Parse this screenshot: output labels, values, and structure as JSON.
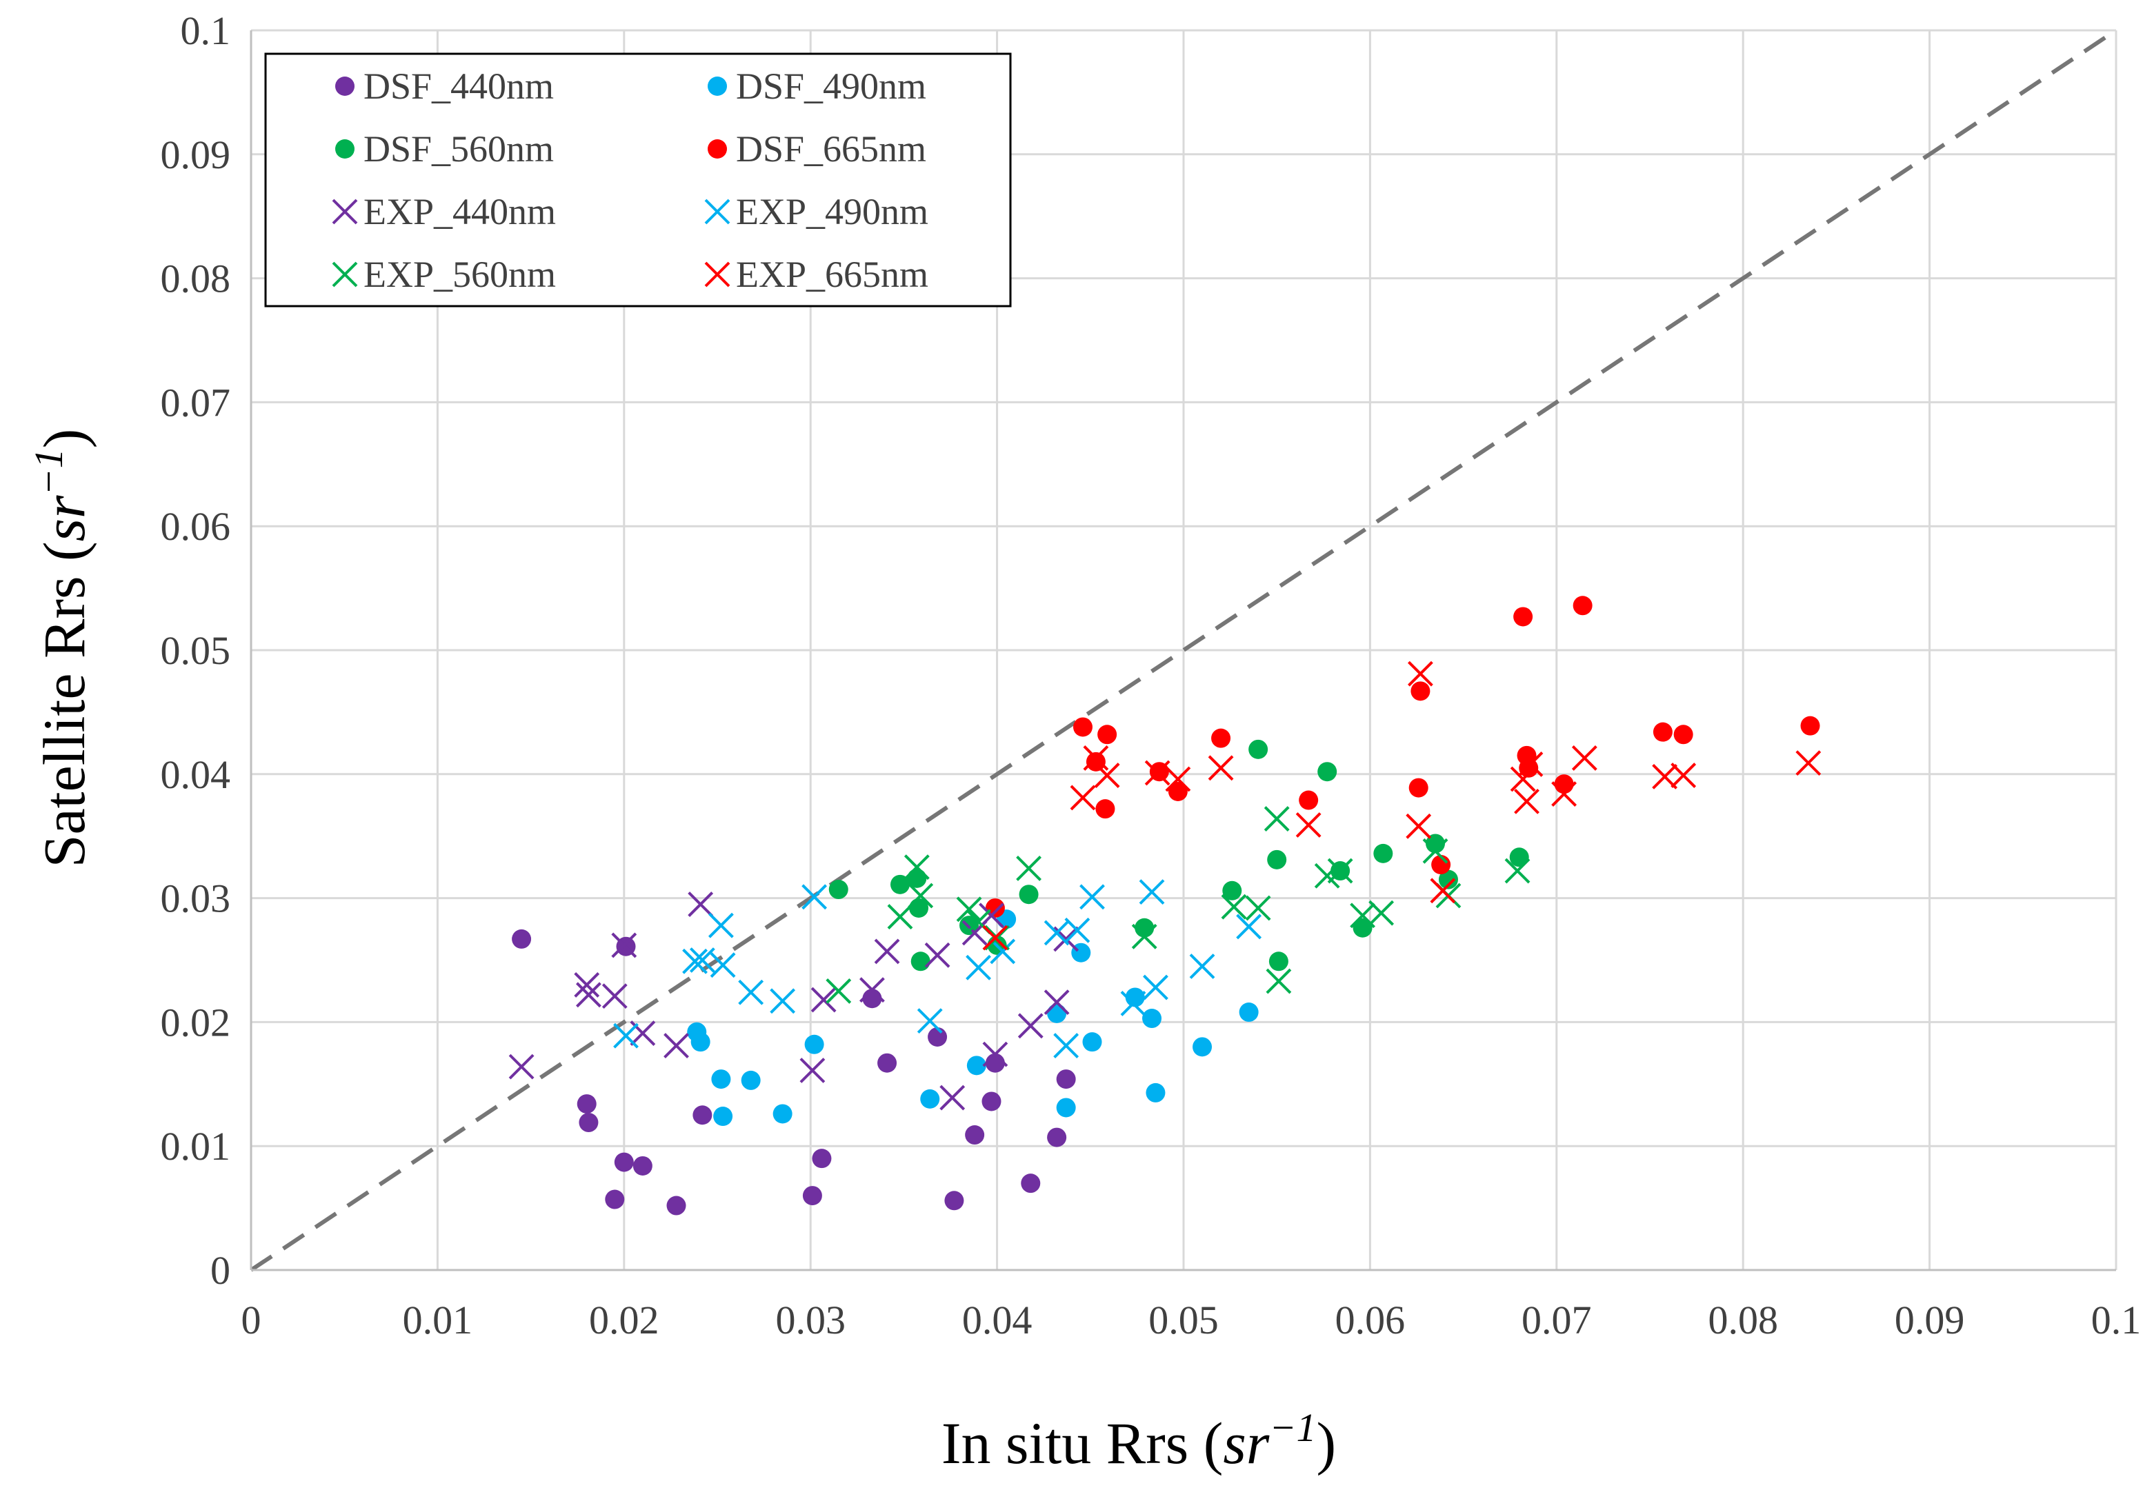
{
  "chart_data": {
    "type": "scatter",
    "title": "",
    "xlabel": "In situ Rrs",
    "xlabel_unit_base": "sr",
    "xlabel_unit_exp": "−1",
    "ylabel": "Satellite Rrs",
    "ylabel_unit_base": "sr",
    "ylabel_unit_exp": "−1",
    "xlim": [
      0,
      0.1
    ],
    "ylim": [
      0,
      0.1
    ],
    "x_ticks": [
      0,
      0.01,
      0.02,
      0.03,
      0.04,
      0.05,
      0.06,
      0.07,
      0.08,
      0.09,
      0.1
    ],
    "x_tick_labels": [
      "0",
      "0.01",
      "0.02",
      "0.03",
      "0.04",
      "0.05",
      "0.06",
      "0.07",
      "0.08",
      "0.09",
      "0.1"
    ],
    "y_ticks": [
      0,
      0.01,
      0.02,
      0.03,
      0.04,
      0.05,
      0.06,
      0.07,
      0.08,
      0.09,
      0.1
    ],
    "y_tick_labels": [
      "0",
      "0.01",
      "0.02",
      "0.03",
      "0.04",
      "0.05",
      "0.06",
      "0.07",
      "0.08",
      "0.09",
      "0.1"
    ],
    "grid": true,
    "reference_line": {
      "name": "1:1 line",
      "from": [
        0,
        0
      ],
      "to": [
        0.1,
        0.1
      ],
      "color": "#767676",
      "style": "dashed"
    },
    "legend_position": "top-left",
    "series": [
      {
        "name": "DSF_440nm",
        "marker": "circle",
        "color": "#7030A0",
        "points": [
          [
            0.0145,
            0.0267
          ],
          [
            0.018,
            0.0134
          ],
          [
            0.0181,
            0.0119
          ],
          [
            0.0195,
            0.0057
          ],
          [
            0.02,
            0.0087
          ],
          [
            0.0201,
            0.0261
          ],
          [
            0.021,
            0.0084
          ],
          [
            0.0228,
            0.0052
          ],
          [
            0.0242,
            0.0125
          ],
          [
            0.0301,
            0.006
          ],
          [
            0.0306,
            0.009
          ],
          [
            0.0333,
            0.0219
          ],
          [
            0.0341,
            0.0167
          ],
          [
            0.0368,
            0.0188
          ],
          [
            0.0377,
            0.0056
          ],
          [
            0.0388,
            0.0109
          ],
          [
            0.0397,
            0.0136
          ],
          [
            0.0399,
            0.0167
          ],
          [
            0.0418,
            0.007
          ],
          [
            0.0432,
            0.0107
          ],
          [
            0.0437,
            0.0154
          ]
        ]
      },
      {
        "name": "DSF_490nm",
        "marker": "circle",
        "color": "#00B0F0",
        "points": [
          [
            0.0239,
            0.0192
          ],
          [
            0.0241,
            0.0184
          ],
          [
            0.0252,
            0.0154
          ],
          [
            0.0253,
            0.0124
          ],
          [
            0.0268,
            0.0153
          ],
          [
            0.0285,
            0.0126
          ],
          [
            0.0302,
            0.0182
          ],
          [
            0.0364,
            0.0138
          ],
          [
            0.0389,
            0.0165
          ],
          [
            0.0405,
            0.0283
          ],
          [
            0.0432,
            0.0207
          ],
          [
            0.0437,
            0.0131
          ],
          [
            0.0445,
            0.0256
          ],
          [
            0.0451,
            0.0184
          ],
          [
            0.0474,
            0.022
          ],
          [
            0.0483,
            0.0203
          ],
          [
            0.0485,
            0.0143
          ],
          [
            0.051,
            0.018
          ],
          [
            0.0535,
            0.0208
          ]
        ]
      },
      {
        "name": "DSF_560nm",
        "marker": "circle",
        "color": "#00B050",
        "points": [
          [
            0.0315,
            0.0307
          ],
          [
            0.0348,
            0.0311
          ],
          [
            0.0357,
            0.0316
          ],
          [
            0.0358,
            0.0292
          ],
          [
            0.0359,
            0.0249
          ],
          [
            0.0385,
            0.0278
          ],
          [
            0.04,
            0.0262
          ],
          [
            0.0417,
            0.0303
          ],
          [
            0.0479,
            0.0276
          ],
          [
            0.0526,
            0.0306
          ],
          [
            0.054,
            0.042
          ],
          [
            0.055,
            0.0331
          ],
          [
            0.0551,
            0.0249
          ],
          [
            0.0577,
            0.0402
          ],
          [
            0.0584,
            0.0322
          ],
          [
            0.0596,
            0.0276
          ],
          [
            0.0607,
            0.0336
          ],
          [
            0.0635,
            0.0344
          ],
          [
            0.0642,
            0.0315
          ],
          [
            0.068,
            0.0333
          ]
        ]
      },
      {
        "name": "DSF_665nm",
        "marker": "circle",
        "color": "#FF0000",
        "points": [
          [
            0.0399,
            0.0292
          ],
          [
            0.0446,
            0.0438
          ],
          [
            0.0453,
            0.041
          ],
          [
            0.0458,
            0.0372
          ],
          [
            0.0459,
            0.0432
          ],
          [
            0.0487,
            0.0402
          ],
          [
            0.0497,
            0.0386
          ],
          [
            0.052,
            0.0429
          ],
          [
            0.0567,
            0.0379
          ],
          [
            0.0626,
            0.0389
          ],
          [
            0.0627,
            0.0467
          ],
          [
            0.0638,
            0.0327
          ],
          [
            0.0682,
            0.0527
          ],
          [
            0.0684,
            0.0415
          ],
          [
            0.0685,
            0.0405
          ],
          [
            0.0704,
            0.0392
          ],
          [
            0.0714,
            0.0536
          ],
          [
            0.0757,
            0.0434
          ],
          [
            0.0768,
            0.0432
          ],
          [
            0.0836,
            0.0439
          ]
        ]
      },
      {
        "name": "EXP_440nm",
        "marker": "x",
        "color": "#7030A0",
        "points": [
          [
            0.0145,
            0.0164
          ],
          [
            0.018,
            0.023
          ],
          [
            0.0181,
            0.0222
          ],
          [
            0.0195,
            0.0221
          ],
          [
            0.02,
            0.0262
          ],
          [
            0.021,
            0.0191
          ],
          [
            0.0228,
            0.0181
          ],
          [
            0.0241,
            0.0295
          ],
          [
            0.0301,
            0.0161
          ],
          [
            0.0307,
            0.0218
          ],
          [
            0.0333,
            0.0226
          ],
          [
            0.0341,
            0.0257
          ],
          [
            0.0368,
            0.0254
          ],
          [
            0.0376,
            0.0139
          ],
          [
            0.0388,
            0.0272
          ],
          [
            0.0397,
            0.0286
          ],
          [
            0.0399,
            0.0174
          ],
          [
            0.0418,
            0.0197
          ],
          [
            0.0432,
            0.0216
          ],
          [
            0.0437,
            0.0267
          ]
        ]
      },
      {
        "name": "EXP_490nm",
        "marker": "x",
        "color": "#00B0F0",
        "points": [
          [
            0.0201,
            0.0189
          ],
          [
            0.0238,
            0.0249
          ],
          [
            0.0242,
            0.025
          ],
          [
            0.0252,
            0.0278
          ],
          [
            0.0253,
            0.0246
          ],
          [
            0.0268,
            0.0224
          ],
          [
            0.0285,
            0.0217
          ],
          [
            0.0302,
            0.0301
          ],
          [
            0.0364,
            0.0201
          ],
          [
            0.039,
            0.0244
          ],
          [
            0.0403,
            0.0257
          ],
          [
            0.0432,
            0.0272
          ],
          [
            0.0437,
            0.0181
          ],
          [
            0.0443,
            0.0274
          ],
          [
            0.0451,
            0.0301
          ],
          [
            0.0473,
            0.0215
          ],
          [
            0.0483,
            0.0305
          ],
          [
            0.0485,
            0.0228
          ],
          [
            0.051,
            0.0245
          ],
          [
            0.0535,
            0.0277
          ]
        ]
      },
      {
        "name": "EXP_560nm",
        "marker": "x",
        "color": "#00B050",
        "points": [
          [
            0.0315,
            0.0225
          ],
          [
            0.0348,
            0.0285
          ],
          [
            0.0357,
            0.0325
          ],
          [
            0.0359,
            0.0302
          ],
          [
            0.0385,
            0.0291
          ],
          [
            0.039,
            0.0281
          ],
          [
            0.04,
            0.0268
          ],
          [
            0.0417,
            0.0324
          ],
          [
            0.0479,
            0.0269
          ],
          [
            0.0527,
            0.0293
          ],
          [
            0.054,
            0.0292
          ],
          [
            0.055,
            0.0364
          ],
          [
            0.0551,
            0.0233
          ],
          [
            0.0577,
            0.0318
          ],
          [
            0.0584,
            0.0322
          ],
          [
            0.0596,
            0.0286
          ],
          [
            0.0606,
            0.0288
          ],
          [
            0.0635,
            0.0338
          ],
          [
            0.0642,
            0.0302
          ],
          [
            0.0679,
            0.0322
          ]
        ]
      },
      {
        "name": "EXP_665nm",
        "marker": "x",
        "color": "#FF0000",
        "points": [
          [
            0.0399,
            0.0268
          ],
          [
            0.0446,
            0.0381
          ],
          [
            0.0453,
            0.0413
          ],
          [
            0.0459,
            0.0399
          ],
          [
            0.0486,
            0.0401
          ],
          [
            0.0497,
            0.0396
          ],
          [
            0.052,
            0.0405
          ],
          [
            0.0567,
            0.0359
          ],
          [
            0.0626,
            0.0358
          ],
          [
            0.0627,
            0.0481
          ],
          [
            0.0639,
            0.0306
          ],
          [
            0.0682,
            0.0396
          ],
          [
            0.0684,
            0.0378
          ],
          [
            0.0686,
            0.0408
          ],
          [
            0.0704,
            0.0384
          ],
          [
            0.0715,
            0.0413
          ],
          [
            0.0758,
            0.0398
          ],
          [
            0.0768,
            0.0399
          ],
          [
            0.0835,
            0.0409
          ]
        ]
      }
    ]
  }
}
